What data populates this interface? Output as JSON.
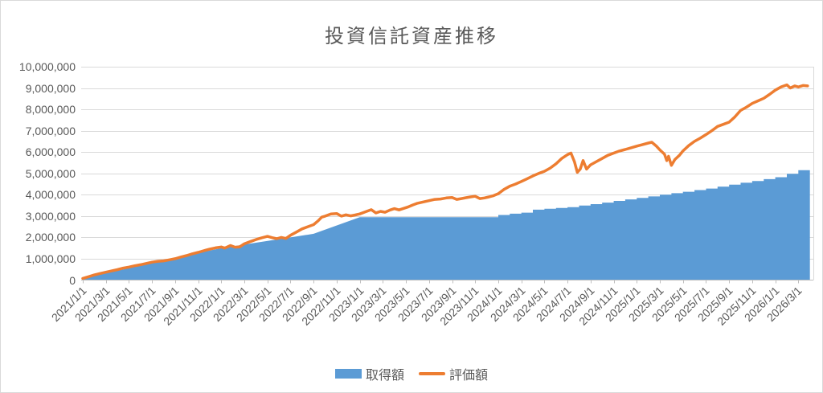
{
  "chart_data": {
    "type": "area+line",
    "title": "投資信託資産推移",
    "xlabel": "",
    "ylabel": "",
    "ylim": [
      0,
      10000000
    ],
    "grid": true,
    "legend_position": "bottom",
    "colors": {
      "gridline": "#d9d9d9",
      "axis_line": "#bfbfbf",
      "axis_text": "#595959",
      "title_text": "#595959"
    },
    "y_ticks": [
      {
        "value": 0,
        "label": "0"
      },
      {
        "value": 1000000,
        "label": "1,000,000"
      },
      {
        "value": 2000000,
        "label": "2,000,000"
      },
      {
        "value": 3000000,
        "label": "3,000,000"
      },
      {
        "value": 4000000,
        "label": "4,000,000"
      },
      {
        "value": 5000000,
        "label": "5,000,000"
      },
      {
        "value": 6000000,
        "label": "6,000,000"
      },
      {
        "value": 7000000,
        "label": "7,000,000"
      },
      {
        "value": 8000000,
        "label": "8,000,000"
      },
      {
        "value": 9000000,
        "label": "9,000,000"
      },
      {
        "value": 10000000,
        "label": "10,000,000"
      }
    ],
    "x_tick_labels": [
      "2021/1/1",
      "2021/3/1",
      "2021/5/1",
      "2021/7/1",
      "2021/9/1",
      "2021/11/1",
      "2022/1/1",
      "2022/3/1",
      "2022/5/1",
      "2022/7/1",
      "2022/9/1",
      "2022/11/1",
      "2023/1/1",
      "2023/3/1",
      "2023/5/1",
      "2023/7/1",
      "2023/9/1",
      "2023/11/1",
      "2024/1/1",
      "2024/3/1",
      "2024/5/1",
      "2024/7/1",
      "2024/9/1",
      "2024/11/1",
      "2025/1/1",
      "2025/3/1",
      "2025/5/1",
      "2025/7/1",
      "2025/9/1",
      "2025/11/1",
      "2026/1/1",
      "2026/3/1"
    ],
    "x_tick_month_spacing": 2,
    "x_range_months": [
      0,
      63.3
    ],
    "series": [
      {
        "name": "取得額",
        "type": "area",
        "color": "#5b9bd5",
        "points": [
          [
            0,
            80000
          ],
          [
            6,
            800000
          ],
          [
            12,
            1500000
          ],
          [
            15,
            1750000
          ],
          [
            18,
            2000000
          ],
          [
            20,
            2170000
          ],
          [
            24,
            2950000
          ],
          [
            36,
            2950000
          ],
          [
            36,
            3050000
          ],
          [
            37,
            3050000
          ],
          [
            37,
            3110000
          ],
          [
            38,
            3110000
          ],
          [
            38,
            3160000
          ],
          [
            39,
            3160000
          ],
          [
            39,
            3300000
          ],
          [
            40,
            3300000
          ],
          [
            40,
            3340000
          ],
          [
            41,
            3340000
          ],
          [
            41,
            3380000
          ],
          [
            42,
            3380000
          ],
          [
            42,
            3420000
          ],
          [
            43,
            3420000
          ],
          [
            43,
            3490000
          ],
          [
            44,
            3490000
          ],
          [
            44,
            3560000
          ],
          [
            45,
            3560000
          ],
          [
            45,
            3630000
          ],
          [
            46,
            3630000
          ],
          [
            46,
            3710000
          ],
          [
            47,
            3710000
          ],
          [
            47,
            3780000
          ],
          [
            48,
            3780000
          ],
          [
            48,
            3850000
          ],
          [
            49,
            3850000
          ],
          [
            49,
            3920000
          ],
          [
            50,
            3920000
          ],
          [
            50,
            4000000
          ],
          [
            51,
            4000000
          ],
          [
            51,
            4070000
          ],
          [
            52,
            4070000
          ],
          [
            52,
            4140000
          ],
          [
            53,
            4140000
          ],
          [
            53,
            4220000
          ],
          [
            54,
            4220000
          ],
          [
            54,
            4290000
          ],
          [
            55,
            4290000
          ],
          [
            55,
            4380000
          ],
          [
            56,
            4380000
          ],
          [
            56,
            4470000
          ],
          [
            57,
            4470000
          ],
          [
            57,
            4560000
          ],
          [
            58,
            4560000
          ],
          [
            58,
            4640000
          ],
          [
            59,
            4640000
          ],
          [
            59,
            4730000
          ],
          [
            60,
            4730000
          ],
          [
            60,
            4820000
          ],
          [
            61,
            4820000
          ],
          [
            61,
            4980000
          ],
          [
            62,
            4980000
          ],
          [
            62,
            5150000
          ],
          [
            63,
            5150000
          ]
        ]
      },
      {
        "name": "評価額",
        "type": "line",
        "color": "#ed7d31",
        "stroke_width": 3.5,
        "points": [
          [
            0,
            80000
          ],
          [
            0.5,
            160000
          ],
          [
            1,
            240000
          ],
          [
            1.5,
            310000
          ],
          [
            2,
            370000
          ],
          [
            2.5,
            430000
          ],
          [
            3,
            490000
          ],
          [
            3.5,
            560000
          ],
          [
            4,
            610000
          ],
          [
            4.5,
            670000
          ],
          [
            5,
            720000
          ],
          [
            5.5,
            780000
          ],
          [
            6,
            840000
          ],
          [
            6.5,
            880000
          ],
          [
            7,
            900000
          ],
          [
            7.5,
            950000
          ],
          [
            8,
            1000000
          ],
          [
            8.5,
            1080000
          ],
          [
            9,
            1150000
          ],
          [
            9.5,
            1230000
          ],
          [
            10,
            1300000
          ],
          [
            10.5,
            1380000
          ],
          [
            11,
            1450000
          ],
          [
            11.5,
            1510000
          ],
          [
            12,
            1550000
          ],
          [
            12.3,
            1500000
          ],
          [
            12.8,
            1620000
          ],
          [
            13.2,
            1540000
          ],
          [
            13.6,
            1560000
          ],
          [
            14,
            1700000
          ],
          [
            14.5,
            1800000
          ],
          [
            15,
            1900000
          ],
          [
            15.5,
            1980000
          ],
          [
            16,
            2050000
          ],
          [
            16.4,
            1990000
          ],
          [
            16.8,
            1940000
          ],
          [
            17.2,
            2000000
          ],
          [
            17.6,
            1950000
          ],
          [
            18,
            2100000
          ],
          [
            18.5,
            2250000
          ],
          [
            19,
            2400000
          ],
          [
            19.5,
            2500000
          ],
          [
            20,
            2600000
          ],
          [
            20.4,
            2780000
          ],
          [
            20.7,
            2950000
          ],
          [
            21,
            3000000
          ],
          [
            21.5,
            3100000
          ],
          [
            22,
            3120000
          ],
          [
            22.4,
            3000000
          ],
          [
            22.8,
            3060000
          ],
          [
            23.2,
            3010000
          ],
          [
            23.6,
            3050000
          ],
          [
            24,
            3100000
          ],
          [
            24.5,
            3200000
          ],
          [
            25,
            3300000
          ],
          [
            25.4,
            3150000
          ],
          [
            25.8,
            3220000
          ],
          [
            26.2,
            3180000
          ],
          [
            26.6,
            3280000
          ],
          [
            27,
            3350000
          ],
          [
            27.4,
            3290000
          ],
          [
            27.8,
            3360000
          ],
          [
            28.2,
            3430000
          ],
          [
            28.6,
            3520000
          ],
          [
            29,
            3600000
          ],
          [
            29.5,
            3660000
          ],
          [
            30,
            3720000
          ],
          [
            30.5,
            3780000
          ],
          [
            31,
            3800000
          ],
          [
            31.5,
            3850000
          ],
          [
            32,
            3870000
          ],
          [
            32.4,
            3780000
          ],
          [
            32.8,
            3820000
          ],
          [
            33.2,
            3860000
          ],
          [
            33.6,
            3900000
          ],
          [
            34,
            3930000
          ],
          [
            34.4,
            3820000
          ],
          [
            34.8,
            3850000
          ],
          [
            35.2,
            3900000
          ],
          [
            35.6,
            3960000
          ],
          [
            36,
            4050000
          ],
          [
            36.5,
            4250000
          ],
          [
            37,
            4400000
          ],
          [
            37.5,
            4500000
          ],
          [
            38,
            4620000
          ],
          [
            38.5,
            4750000
          ],
          [
            39,
            4880000
          ],
          [
            39.5,
            5000000
          ],
          [
            40,
            5100000
          ],
          [
            40.5,
            5250000
          ],
          [
            41,
            5450000
          ],
          [
            41.5,
            5700000
          ],
          [
            42,
            5880000
          ],
          [
            42.3,
            5950000
          ],
          [
            42.6,
            5550000
          ],
          [
            42.85,
            5050000
          ],
          [
            43.1,
            5200000
          ],
          [
            43.35,
            5600000
          ],
          [
            43.65,
            5200000
          ],
          [
            44,
            5400000
          ],
          [
            44.5,
            5550000
          ],
          [
            45,
            5700000
          ],
          [
            45.5,
            5850000
          ],
          [
            46,
            5950000
          ],
          [
            46.5,
            6050000
          ],
          [
            47,
            6120000
          ],
          [
            47.5,
            6200000
          ],
          [
            48,
            6280000
          ],
          [
            48.5,
            6350000
          ],
          [
            49,
            6420000
          ],
          [
            49.3,
            6460000
          ],
          [
            49.7,
            6280000
          ],
          [
            50,
            6100000
          ],
          [
            50.4,
            5900000
          ],
          [
            50.6,
            5600000
          ],
          [
            50.75,
            5800000
          ],
          [
            51,
            5380000
          ],
          [
            51.3,
            5650000
          ],
          [
            51.7,
            5850000
          ],
          [
            52,
            6050000
          ],
          [
            52.5,
            6300000
          ],
          [
            53,
            6500000
          ],
          [
            53.5,
            6650000
          ],
          [
            54,
            6820000
          ],
          [
            54.5,
            7000000
          ],
          [
            55,
            7200000
          ],
          [
            55.5,
            7300000
          ],
          [
            56,
            7400000
          ],
          [
            56.5,
            7650000
          ],
          [
            57,
            7950000
          ],
          [
            57.5,
            8100000
          ],
          [
            58,
            8280000
          ],
          [
            58.5,
            8400000
          ],
          [
            59,
            8520000
          ],
          [
            59.5,
            8700000
          ],
          [
            60,
            8900000
          ],
          [
            60.5,
            9050000
          ],
          [
            61,
            9150000
          ],
          [
            61.3,
            9000000
          ],
          [
            61.7,
            9100000
          ],
          [
            62,
            9050000
          ],
          [
            62.4,
            9120000
          ],
          [
            62.8,
            9100000
          ]
        ]
      }
    ]
  },
  "legend": {
    "acquisition_label": "取得額",
    "valuation_label": "評価額"
  }
}
